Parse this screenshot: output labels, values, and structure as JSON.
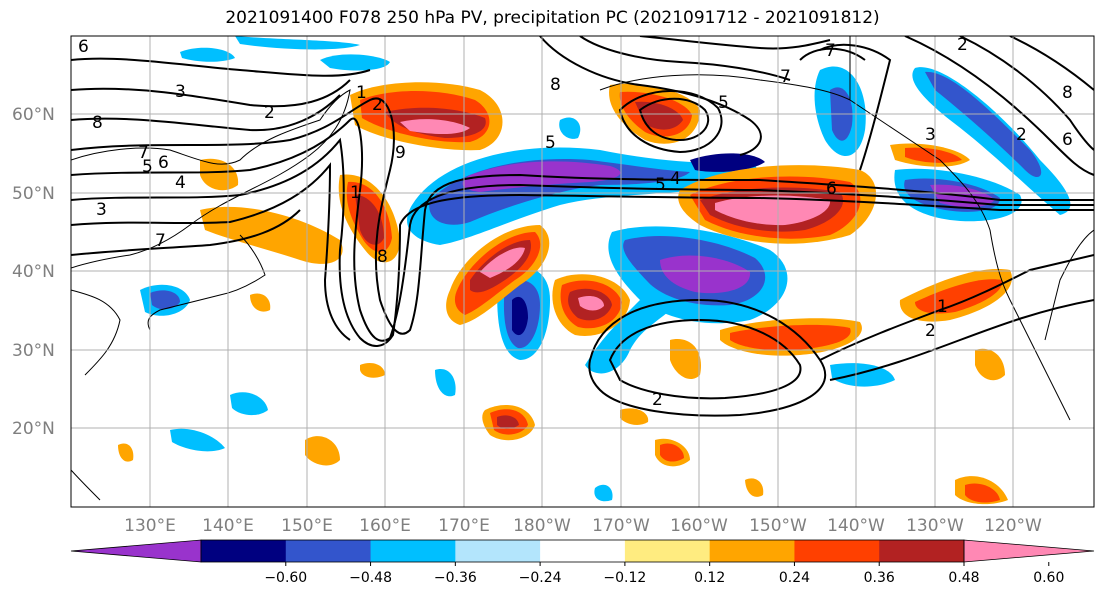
{
  "title": "2021091400 F078 250 hPa PV, precipitation PC (2021091712 - 2021091812)",
  "lat_labels": [
    "60°N",
    "50°N",
    "40°N",
    "30°N",
    "20°N"
  ],
  "lon_labels": [
    "130°E",
    "140°E",
    "150°E",
    "160°E",
    "170°E",
    "180°W",
    "170°W",
    "160°W",
    "150°W",
    "140°W",
    "130°W",
    "120°W"
  ],
  "colorbar": {
    "colors": [
      "#9933cc",
      "#000080",
      "#3355cc",
      "#00bfff",
      "#b3e5fc",
      "#ffffff",
      "#ffec80",
      "#ffa500",
      "#ff4000",
      "#b22222",
      "#ff88b4"
    ],
    "tick_labels": [
      "−0.60",
      "−0.48",
      "−0.36",
      "−0.24",
      "−0.12",
      "0.12",
      "0.24",
      "0.36",
      "0.48",
      "0.60"
    ]
  },
  "contour_labels": [
    "6",
    "3",
    "8",
    "2",
    "7",
    "6",
    "5",
    "4",
    "3",
    "7",
    "1",
    "2",
    "9",
    "8",
    "1",
    "5",
    "5",
    "8",
    "7",
    "6",
    "3",
    "2",
    "1",
    "2",
    "2",
    "2",
    "8",
    "7",
    "6",
    "5",
    "4"
  ]
}
